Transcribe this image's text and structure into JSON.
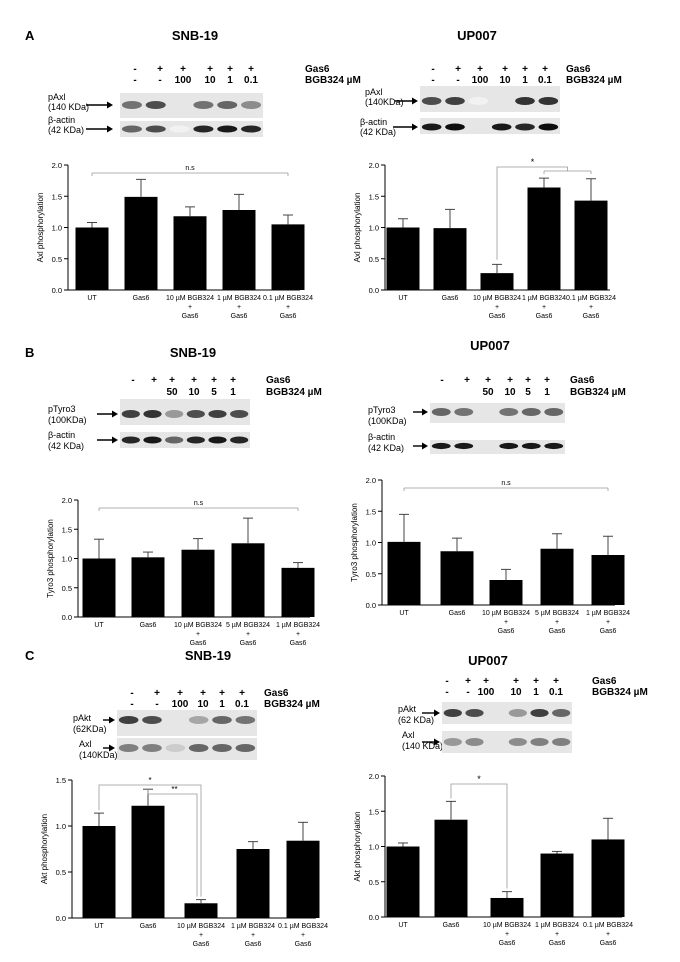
{
  "panels": [
    {
      "letter": "A",
      "left": {
        "title": "SNB-19",
        "gas6": [
          "-",
          "+",
          "+",
          "+",
          "+",
          "+"
        ],
        "bgb": [
          "-",
          "-",
          "100",
          "10",
          "1",
          "0.1"
        ],
        "row1_label": [
          "pAxl",
          "(140 KDa)"
        ],
        "row2_label": [
          "β-actin",
          "(42 KDa)"
        ],
        "chart_data": {
          "type": "bar",
          "ylabel": "Axl phosphorylation",
          "ylim": [
            0,
            2.0
          ],
          "yticks": [
            "0.0",
            "0.5",
            "1.0",
            "1.5",
            "2.0"
          ],
          "categories": [
            [
              "UT"
            ],
            [
              "Gas6"
            ],
            [
              "10 µM BGB324",
              "+",
              "Gas6"
            ],
            [
              "1 µM BGB324",
              "+",
              "Gas6"
            ],
            [
              "0.1 µM BGB324",
              "+",
              "Gas6"
            ]
          ],
          "values": [
            1.0,
            1.49,
            1.18,
            1.28,
            1.05
          ],
          "errors": [
            0.08,
            0.28,
            0.15,
            0.25,
            0.15
          ],
          "annotations": [
            "n.s"
          ]
        }
      },
      "right": {
        "title": "UP007",
        "gas6": [
          "-",
          "+",
          "+",
          "+",
          "+",
          "+"
        ],
        "bgb": [
          "-",
          "-",
          "100",
          "10",
          "1",
          "0.1"
        ],
        "row1_label": [
          "pAxl",
          "(140KDa)"
        ],
        "row2_label": [
          "β-actin",
          "(42 KDa)"
        ],
        "chart_data": {
          "type": "bar",
          "ylabel": "Axl phosphorylation",
          "ylim": [
            0,
            2.0
          ],
          "yticks": [
            "0.0",
            "0.5",
            "1.0",
            "1.5",
            "2.0"
          ],
          "categories": [
            [
              "UT"
            ],
            [
              "Gas6"
            ],
            [
              "10 µM BGB324",
              "+",
              "Gas6"
            ],
            [
              "1 µM BGB324",
              "+",
              "Gas6"
            ],
            [
              "0.1 µM BGB324",
              "+",
              "Gas6"
            ]
          ],
          "values": [
            1.0,
            0.99,
            0.27,
            1.64,
            1.43
          ],
          "errors": [
            0.14,
            0.3,
            0.14,
            0.15,
            0.35
          ],
          "annotations": [
            "*"
          ]
        }
      }
    },
    {
      "letter": "B",
      "left": {
        "title": "SNB-19",
        "gas6": [
          "-",
          "+",
          "+",
          "+",
          "+",
          "+"
        ],
        "bgb": [
          "",
          "",
          "50",
          "10",
          "5",
          "1"
        ],
        "row1_label": [
          "pTyro3",
          "(100KDa)"
        ],
        "row2_label": [
          "β-actin",
          "(42 KDa)"
        ],
        "chart_data": {
          "type": "bar",
          "ylabel": "Tyro3 phosphorylation",
          "ylim": [
            0,
            2.0
          ],
          "yticks": [
            "0.0",
            "0.5",
            "1.0",
            "1.5",
            "2.0"
          ],
          "categories": [
            [
              "UT"
            ],
            [
              "Gas6"
            ],
            [
              "10 µM BGB324",
              "+",
              "Gas6"
            ],
            [
              "5 µM BGB324",
              "+",
              "Gas6"
            ],
            [
              "1 µM BGB324",
              "+",
              "Gas6"
            ]
          ],
          "values": [
            1.0,
            1.02,
            1.15,
            1.26,
            0.84
          ],
          "errors": [
            0.33,
            0.09,
            0.19,
            0.43,
            0.09
          ],
          "annotations": [
            "n.s"
          ]
        }
      },
      "right": {
        "title": "UP007",
        "gas6": [
          "-",
          "+",
          "+",
          "+",
          "+",
          "+"
        ],
        "bgb": [
          "",
          "",
          "50",
          "10",
          "5",
          "1"
        ],
        "row1_label": [
          "pTyro3",
          "(100KDa)"
        ],
        "row2_label": [
          "β-actin",
          "(42 KDa)"
        ],
        "chart_data": {
          "type": "bar",
          "ylabel": "Tyro3 phosphorylation",
          "ylim": [
            0,
            2.0
          ],
          "yticks": [
            "0.0",
            "0.5",
            "1.0",
            "1.5",
            "2.0"
          ],
          "categories": [
            [
              "UT"
            ],
            [
              "Gas6"
            ],
            [
              "10 µM BGB324",
              "+",
              "Gas6"
            ],
            [
              "5 µM BGB324",
              "+",
              "Gas6"
            ],
            [
              "1 µM BGB324",
              "+",
              "Gas6"
            ]
          ],
          "values": [
            1.01,
            0.86,
            0.4,
            0.9,
            0.8
          ],
          "errors": [
            0.44,
            0.21,
            0.17,
            0.24,
            0.3
          ],
          "annotations": [
            "n.s"
          ]
        }
      }
    },
    {
      "letter": "C",
      "left": {
        "title": "SNB-19",
        "gas6": [
          "-",
          "+",
          "+",
          "+",
          "+",
          "+"
        ],
        "bgb": [
          "-",
          "-",
          "100",
          "10",
          "1",
          "0.1"
        ],
        "row1_label": [
          "pAkt",
          "(62KDa)"
        ],
        "row2_label": [
          "Axl",
          "(140KDa)"
        ],
        "chart_data": {
          "type": "bar",
          "ylabel": "Akt phosphorylation",
          "ylim": [
            0,
            1.5
          ],
          "yticks": [
            "0.0",
            "0.5",
            "1.0",
            "1.5"
          ],
          "categories": [
            [
              "UT"
            ],
            [
              "Gas6"
            ],
            [
              "10 µM BGB324",
              "+",
              "Gas6"
            ],
            [
              "1 µM BGB324",
              "+",
              "Gas6"
            ],
            [
              "0.1 µM BGB324",
              "+",
              "Gas6"
            ]
          ],
          "values": [
            1.0,
            1.22,
            0.16,
            0.75,
            0.84
          ],
          "errors": [
            0.14,
            0.18,
            0.04,
            0.08,
            0.2
          ],
          "annotations": [
            "*",
            "**"
          ]
        }
      },
      "right": {
        "title": "UP007",
        "gas6": [
          "-",
          "+",
          "+",
          "+",
          "+",
          "+"
        ],
        "bgb": [
          "-",
          "-",
          "100",
          "10",
          "1",
          "0.1"
        ],
        "row1_label": [
          "pAkt",
          "(62 KDa)"
        ],
        "row2_label": [
          "Axl",
          "(140 KDa)"
        ],
        "chart_data": {
          "type": "bar",
          "ylabel": "Akt phosphorylation",
          "ylim": [
            0,
            2.0
          ],
          "yticks": [
            "0.0",
            "0.5",
            "1.0",
            "1.5",
            "2.0"
          ],
          "categories": [
            [
              "UT"
            ],
            [
              "Gas6"
            ],
            [
              "10 µM BGB324",
              "+",
              "Gas6"
            ],
            [
              "1 µM BGB324",
              "+",
              "Gas6"
            ],
            [
              "0.1 µM BGB324",
              "+",
              "Gas6"
            ]
          ],
          "values": [
            1.0,
            1.38,
            0.27,
            0.9,
            1.1
          ],
          "errors": [
            0.05,
            0.26,
            0.09,
            0.03,
            0.3
          ],
          "annotations": [
            "*"
          ]
        }
      }
    }
  ],
  "row_labels": {
    "gas6": "Gas6",
    "bgb": "BGB324 µM"
  }
}
